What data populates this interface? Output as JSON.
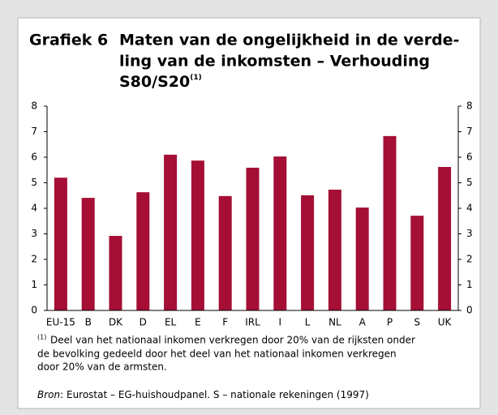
{
  "chart_data": {
    "type": "bar",
    "figure_label": "Grafiek 6",
    "title_lines": [
      "Maten van de ongelijkheid in de verde-",
      "ling van de inkomsten – Verhouding",
      "S80/S20"
    ],
    "title_note": "(1)",
    "categories": [
      "EU-15",
      "B",
      "DK",
      "D",
      "EL",
      "E",
      "F",
      "IRL",
      "I",
      "L",
      "NL",
      "A",
      "P",
      "S",
      "UK"
    ],
    "values": [
      5.2,
      4.41,
      2.92,
      4.63,
      6.1,
      5.87,
      4.48,
      5.59,
      6.03,
      4.51,
      4.73,
      4.03,
      6.83,
      3.71,
      5.62
    ],
    "color": "#a50f35",
    "ylim": [
      0,
      8
    ],
    "yticks": [
      0,
      1,
      2,
      3,
      4,
      5,
      6,
      7,
      8
    ],
    "footnote_marker": "(1)",
    "footnote_lines": [
      "Deel van het nationaal inkomen verkregen door 20% van de rijksten onder",
      "de bevolking gedeeld door het deel van het nationaal inkomen verkregen",
      "door 20% van de armsten."
    ],
    "source_label": "Bron",
    "source_text": ": Eurostat – EG-huishoudpanel. S – nationale rekeningen (1997)"
  }
}
